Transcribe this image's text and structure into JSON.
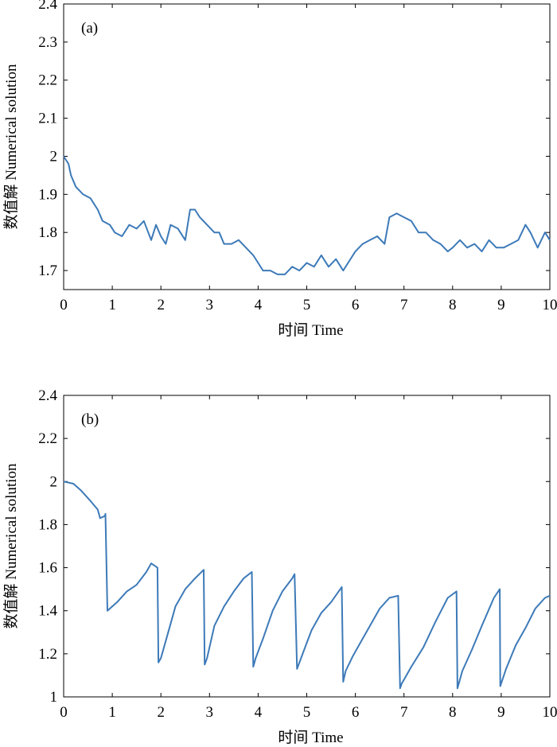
{
  "chart_data": [
    {
      "type": "line",
      "panel_label": "(a)",
      "xlabel": "时间 Time",
      "ylabel": "数值解 Numerical solution",
      "xlim": [
        0,
        10
      ],
      "ylim": [
        1.65,
        2.4
      ],
      "xticks": [
        "0",
        "1",
        "2",
        "3",
        "4",
        "5",
        "6",
        "7",
        "8",
        "9",
        "10"
      ],
      "yticks": [
        "1.7",
        "1.8",
        "1.9",
        "2",
        "2.1",
        "2.2",
        "2.3",
        "2.4"
      ],
      "ytick_values": [
        1.7,
        1.8,
        1.9,
        2.0,
        2.1,
        2.2,
        2.3,
        2.4
      ],
      "grid": false,
      "color": "#3d7ab8",
      "series": [
        {
          "x": [
            0,
            0.1,
            0.15,
            0.25,
            0.4,
            0.55,
            0.7,
            0.8,
            0.95,
            1.05,
            1.2,
            1.35,
            1.5,
            1.65,
            1.8,
            1.9,
            2.0,
            2.1,
            2.2,
            2.35,
            2.5,
            2.6,
            2.7,
            2.8,
            2.95,
            3.1,
            3.2,
            3.3,
            3.45,
            3.6,
            3.75,
            3.9,
            4.0,
            4.1,
            4.25,
            4.4,
            4.55,
            4.7,
            4.85,
            5.0,
            5.15,
            5.3,
            5.45,
            5.6,
            5.75,
            5.85,
            6.0,
            6.15,
            6.3,
            6.45,
            6.6,
            6.7,
            6.85,
            7.0,
            7.15,
            7.3,
            7.45,
            7.6,
            7.75,
            7.9,
            8.0,
            8.15,
            8.3,
            8.45,
            8.6,
            8.75,
            8.9,
            9.05,
            9.2,
            9.35,
            9.5,
            9.6,
            9.75,
            9.9,
            10.0
          ],
          "y": [
            2.0,
            1.98,
            1.95,
            1.92,
            1.9,
            1.89,
            1.86,
            1.83,
            1.82,
            1.8,
            1.79,
            1.82,
            1.81,
            1.83,
            1.78,
            1.82,
            1.79,
            1.77,
            1.82,
            1.81,
            1.78,
            1.86,
            1.86,
            1.84,
            1.82,
            1.8,
            1.8,
            1.77,
            1.77,
            1.78,
            1.76,
            1.74,
            1.72,
            1.7,
            1.7,
            1.69,
            1.69,
            1.71,
            1.7,
            1.72,
            1.71,
            1.74,
            1.71,
            1.73,
            1.7,
            1.72,
            1.75,
            1.77,
            1.78,
            1.79,
            1.77,
            1.84,
            1.85,
            1.84,
            1.83,
            1.8,
            1.8,
            1.78,
            1.77,
            1.75,
            1.76,
            1.78,
            1.76,
            1.77,
            1.75,
            1.78,
            1.76,
            1.76,
            1.77,
            1.78,
            1.82,
            1.8,
            1.76,
            1.8,
            1.78
          ]
        }
      ]
    },
    {
      "type": "line",
      "panel_label": "(b)",
      "xlabel": "时间 Time",
      "ylabel": "数值解 Numerical solution",
      "xlim": [
        0,
        10
      ],
      "ylim": [
        1.0,
        2.4
      ],
      "xticks": [
        "0",
        "1",
        "2",
        "3",
        "4",
        "5",
        "6",
        "7",
        "8",
        "9",
        "10"
      ],
      "yticks": [
        "1",
        "1.2",
        "1.4",
        "1.6",
        "1.8",
        "2",
        "2.2",
        "2.4"
      ],
      "ytick_values": [
        1.0,
        1.2,
        1.4,
        1.6,
        1.8,
        2.0,
        2.2,
        2.4
      ],
      "grid": false,
      "color": "#3d7ab8",
      "series": [
        {
          "x": [
            0,
            0.2,
            0.35,
            0.55,
            0.7,
            0.75,
            0.85,
            0.86,
            0.9,
            1.1,
            1.3,
            1.5,
            1.7,
            1.8,
            1.93,
            1.95,
            2.0,
            2.15,
            2.3,
            2.5,
            2.7,
            2.88,
            2.9,
            2.95,
            3.1,
            3.3,
            3.5,
            3.7,
            3.87,
            3.9,
            3.95,
            4.1,
            4.3,
            4.5,
            4.7,
            4.75,
            4.8,
            4.95,
            5.1,
            5.3,
            5.5,
            5.72,
            5.75,
            5.8,
            5.95,
            6.1,
            6.3,
            6.5,
            6.7,
            6.88,
            6.92,
            6.95,
            7.15,
            7.4,
            7.65,
            7.9,
            8.08,
            8.1,
            8.2,
            8.4,
            8.6,
            8.85,
            8.97,
            8.98,
            9.1,
            9.3,
            9.5,
            9.7,
            9.9,
            10.0
          ],
          "y": [
            2.0,
            1.99,
            1.96,
            1.91,
            1.87,
            1.83,
            1.84,
            1.85,
            1.4,
            1.44,
            1.49,
            1.52,
            1.58,
            1.62,
            1.6,
            1.16,
            1.18,
            1.3,
            1.42,
            1.5,
            1.55,
            1.59,
            1.15,
            1.18,
            1.33,
            1.42,
            1.49,
            1.55,
            1.58,
            1.14,
            1.18,
            1.27,
            1.4,
            1.49,
            1.55,
            1.57,
            1.13,
            1.22,
            1.31,
            1.39,
            1.44,
            1.51,
            1.07,
            1.12,
            1.19,
            1.25,
            1.33,
            1.41,
            1.46,
            1.47,
            1.04,
            1.06,
            1.14,
            1.23,
            1.35,
            1.46,
            1.49,
            1.04,
            1.12,
            1.22,
            1.33,
            1.46,
            1.5,
            1.05,
            1.13,
            1.24,
            1.32,
            1.41,
            1.46,
            1.47
          ]
        }
      ]
    }
  ]
}
